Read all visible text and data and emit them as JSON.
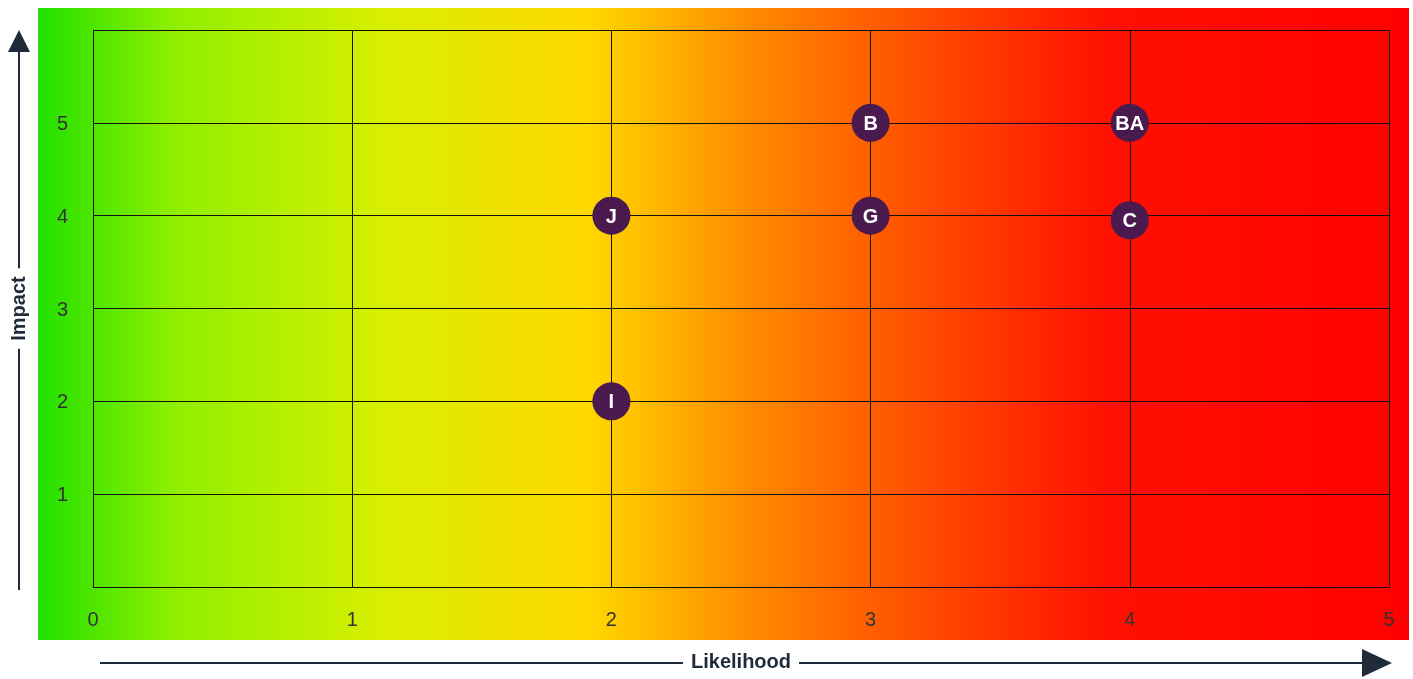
{
  "chart_data": {
    "type": "scatter",
    "xlabel": "Likelihood",
    "ylabel": "Impact",
    "x": [
      3,
      4,
      2,
      3,
      4,
      2
    ],
    "values": [
      5,
      5,
      4,
      4,
      3.95,
      2
    ],
    "color": "#4a1a4f",
    "marker": "circle",
    "grid": true,
    "xlim": [
      0,
      5
    ],
    "xticks": [
      0,
      1,
      2,
      3,
      4,
      5
    ],
    "ylim": [
      0,
      6
    ],
    "yticks": [
      {
        "value": 0,
        "label": null
      },
      1,
      2,
      3,
      4,
      5,
      {
        "value": 6,
        "label": null
      }
    ],
    "annotations": [
      {
        "text": "B",
        "x": 3,
        "y": 5
      },
      {
        "text": "BA",
        "x": 4,
        "y": 5
      },
      {
        "text": "J",
        "x": 2,
        "y": 4
      },
      {
        "text": "G",
        "x": 3,
        "y": 4
      },
      {
        "text": "C",
        "x": 4,
        "y": 3.95
      },
      {
        "text": "I",
        "x": 2,
        "y": 2
      }
    ]
  }
}
